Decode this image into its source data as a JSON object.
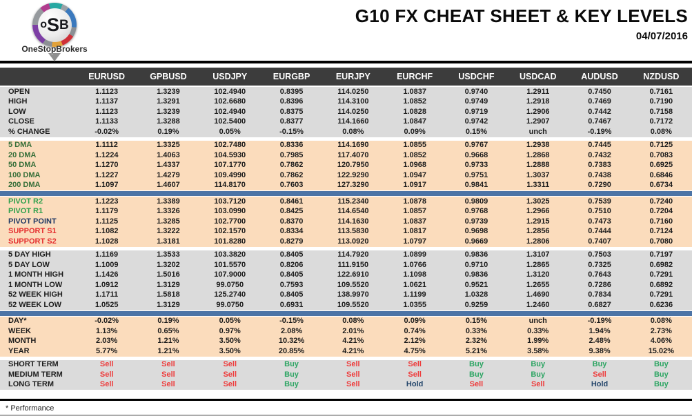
{
  "logo": {
    "monogram": "oSB",
    "brand": "OneStopBrokers"
  },
  "header": {
    "title": "G10 FX CHEAT SHEET & KEY LEVELS",
    "date": "04/07/2016"
  },
  "footer": {
    "note": "* Performance"
  },
  "colors": {
    "header_bg": "#3C3C3C",
    "gray_row": "#DBDBDB",
    "peach_row": "#FBDCBC",
    "divider_blue": "#4C74A6",
    "buy": "#2DA563",
    "sell": "#EE3B3B",
    "hold": "#24466B",
    "resistance_green": "#2EA04C",
    "support_red": "#E42F2F",
    "pivot_navy": "#203864",
    "dma_green": "#356E38"
  },
  "table": {
    "columns": [
      "EURUSD",
      "GPBUSD",
      "USDJPY",
      "EURGBP",
      "EURJPY",
      "EURCHF",
      "USDCHF",
      "USDCAD",
      "AUDUSD",
      "NZDUSD"
    ],
    "sections": [
      {
        "id": "ohlc",
        "bg": "gray",
        "divider_after": "gap",
        "rows": [
          {
            "label": "OPEN",
            "label_style": "default",
            "values": [
              "1.1123",
              "1.3239",
              "102.4940",
              "0.8395",
              "114.0250",
              "1.0837",
              "0.9740",
              "1.2911",
              "0.7450",
              "0.7161"
            ]
          },
          {
            "label": "HIGH",
            "label_style": "default",
            "values": [
              "1.1137",
              "1.3291",
              "102.6680",
              "0.8396",
              "114.3100",
              "1.0852",
              "0.9749",
              "1.2918",
              "0.7469",
              "0.7190"
            ]
          },
          {
            "label": "LOW",
            "label_style": "default",
            "values": [
              "1.1123",
              "1.3239",
              "102.4940",
              "0.8375",
              "114.0250",
              "1.0828",
              "0.9719",
              "1.2906",
              "0.7442",
              "0.7158"
            ]
          },
          {
            "label": "CLOSE",
            "label_style": "default",
            "values": [
              "1.1133",
              "1.3288",
              "102.5400",
              "0.8377",
              "114.1660",
              "1.0847",
              "0.9742",
              "1.2907",
              "0.7467",
              "0.7172"
            ]
          },
          {
            "label": "% CHANGE",
            "label_style": "default",
            "values": [
              "-0.02%",
              "0.19%",
              "0.05%",
              "-0.15%",
              "0.08%",
              "0.09%",
              "0.15%",
              "unch",
              "-0.19%",
              "0.08%"
            ]
          }
        ]
      },
      {
        "id": "dma",
        "bg": "peach",
        "divider_after": "blue",
        "rows": [
          {
            "label": "5 DMA",
            "label_style": "dma",
            "values": [
              "1.1112",
              "1.3325",
              "102.7480",
              "0.8336",
              "114.1690",
              "1.0855",
              "0.9767",
              "1.2938",
              "0.7445",
              "0.7125"
            ]
          },
          {
            "label": "20 DMA",
            "label_style": "dma",
            "values": [
              "1.1224",
              "1.4063",
              "104.5930",
              "0.7985",
              "117.4070",
              "1.0852",
              "0.9668",
              "1.2868",
              "0.7432",
              "0.7083"
            ]
          },
          {
            "label": "50 DMA",
            "label_style": "dma",
            "values": [
              "1.1270",
              "1.4337",
              "107.1770",
              "0.7862",
              "120.7950",
              "1.0968",
              "0.9733",
              "1.2888",
              "0.7383",
              "0.6925"
            ]
          },
          {
            "label": "100 DMA",
            "label_style": "dma",
            "values": [
              "1.1227",
              "1.4279",
              "109.4990",
              "0.7862",
              "122.9290",
              "1.0947",
              "0.9751",
              "1.3037",
              "0.7438",
              "0.6846"
            ]
          },
          {
            "label": "200 DMA",
            "label_style": "dma",
            "values": [
              "1.1097",
              "1.4607",
              "114.8170",
              "0.7603",
              "127.3290",
              "1.0917",
              "0.9841",
              "1.3311",
              "0.7290",
              "0.6734"
            ]
          }
        ]
      },
      {
        "id": "pivots",
        "bg": "peach",
        "divider_after": "gap",
        "rows": [
          {
            "label": "PIVOT R2",
            "label_style": "green",
            "values": [
              "1.1223",
              "1.3389",
              "103.7120",
              "0.8461",
              "115.2340",
              "1.0878",
              "0.9809",
              "1.3025",
              "0.7539",
              "0.7240"
            ]
          },
          {
            "label": "PIVOT R1",
            "label_style": "green",
            "values": [
              "1.1179",
              "1.3326",
              "103.0990",
              "0.8425",
              "114.6540",
              "1.0857",
              "0.9768",
              "1.2966",
              "0.7510",
              "0.7204"
            ]
          },
          {
            "label": "PIVOT POINT",
            "label_style": "navy",
            "values": [
              "1.1125",
              "1.3285",
              "102.7700",
              "0.8370",
              "114.1630",
              "1.0837",
              "0.9739",
              "1.2915",
              "0.7473",
              "0.7160"
            ]
          },
          {
            "label": "SUPPORT S1",
            "label_style": "red",
            "values": [
              "1.1082",
              "1.3222",
              "102.1570",
              "0.8334",
              "113.5830",
              "1.0817",
              "0.9698",
              "1.2856",
              "0.7444",
              "0.7124"
            ]
          },
          {
            "label": "SUPPORT S2",
            "label_style": "red",
            "values": [
              "1.1028",
              "1.3181",
              "101.8280",
              "0.8279",
              "113.0920",
              "1.0797",
              "0.9669",
              "1.2806",
              "0.7407",
              "0.7080"
            ]
          }
        ]
      },
      {
        "id": "ranges",
        "bg": "gray",
        "divider_after": "blue",
        "rows": [
          {
            "label": "5 DAY HIGH",
            "label_style": "default",
            "values": [
              "1.1169",
              "1.3533",
              "103.3820",
              "0.8405",
              "114.7920",
              "1.0899",
              "0.9836",
              "1.3107",
              "0.7503",
              "0.7197"
            ]
          },
          {
            "label": "5 DAY LOW",
            "label_style": "default",
            "values": [
              "1.1009",
              "1.3202",
              "101.5570",
              "0.8206",
              "111.9150",
              "1.0766",
              "0.9710",
              "1.2865",
              "0.7325",
              "0.6982"
            ]
          },
          {
            "label": "1 MONTH HIGH",
            "label_style": "default",
            "values": [
              "1.1426",
              "1.5016",
              "107.9000",
              "0.8405",
              "122.6910",
              "1.1098",
              "0.9836",
              "1.3120",
              "0.7643",
              "0.7291"
            ]
          },
          {
            "label": "1 MONTH LOW",
            "label_style": "default",
            "values": [
              "1.0912",
              "1.3129",
              "99.0750",
              "0.7593",
              "109.5520",
              "1.0621",
              "0.9521",
              "1.2655",
              "0.7286",
              "0.6892"
            ]
          },
          {
            "label": "52 WEEK HIGH",
            "label_style": "default",
            "values": [
              "1.1711",
              "1.5818",
              "125.2740",
              "0.8405",
              "138.9970",
              "1.1199",
              "1.0328",
              "1.4690",
              "0.7834",
              "0.7291"
            ]
          },
          {
            "label": "52 WEEK LOW",
            "label_style": "default",
            "values": [
              "1.0525",
              "1.3129",
              "99.0750",
              "0.6931",
              "109.5520",
              "1.0355",
              "0.9259",
              "1.2460",
              "0.6827",
              "0.6236"
            ]
          }
        ]
      },
      {
        "id": "performance",
        "bg": "peach",
        "divider_after": "gap",
        "rows": [
          {
            "label": "DAY*",
            "label_style": "default",
            "values": [
              "-0.02%",
              "0.19%",
              "0.05%",
              "-0.15%",
              "0.08%",
              "0.09%",
              "0.15%",
              "unch",
              "-0.19%",
              "0.08%"
            ]
          },
          {
            "label": "WEEK",
            "label_style": "default",
            "values": [
              "1.13%",
              "0.65%",
              "0.97%",
              "2.08%",
              "2.01%",
              "0.74%",
              "0.33%",
              "0.33%",
              "1.94%",
              "2.73%"
            ]
          },
          {
            "label": "MONTH",
            "label_style": "default",
            "values": [
              "2.03%",
              "1.21%",
              "3.50%",
              "10.32%",
              "4.21%",
              "2.12%",
              "2.32%",
              "1.99%",
              "2.48%",
              "4.06%"
            ]
          },
          {
            "label": "YEAR",
            "label_style": "default",
            "values": [
              "5.77%",
              "1.21%",
              "3.50%",
              "20.85%",
              "4.21%",
              "4.75%",
              "5.21%",
              "3.58%",
              "9.38%",
              "15.02%"
            ]
          }
        ]
      },
      {
        "id": "signals",
        "bg": "gray",
        "divider_after": "none",
        "rows": [
          {
            "label": "SHORT TERM",
            "label_style": "default",
            "values": [
              "Sell",
              "Sell",
              "Sell",
              "Buy",
              "Sell",
              "Sell",
              "Buy",
              "Buy",
              "Buy",
              "Buy"
            ]
          },
          {
            "label": "MEDIUM TERM",
            "label_style": "default",
            "values": [
              "Sell",
              "Sell",
              "Sell",
              "Buy",
              "Sell",
              "Sell",
              "Buy",
              "Buy",
              "Sell",
              "Buy"
            ]
          },
          {
            "label": "LONG TERM",
            "label_style": "default",
            "values": [
              "Sell",
              "Sell",
              "Sell",
              "Buy",
              "Sell",
              "Hold",
              "Sell",
              "Sell",
              "Hold",
              "Buy"
            ]
          }
        ]
      }
    ]
  }
}
